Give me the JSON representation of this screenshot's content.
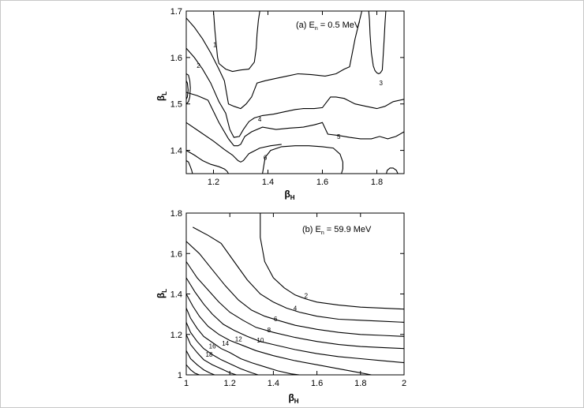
{
  "chart_data": [
    {
      "type": "line",
      "subtype": "contour",
      "panel_label_prefix": "(a) E",
      "panel_label_sub": "n",
      "panel_label_suffix": " = 0.5 MeV",
      "xlabel_main": "β",
      "xlabel_sub": "H",
      "ylabel_main": "β",
      "ylabel_sub": "L",
      "xlim": [
        1.1,
        1.9
      ],
      "ylim": [
        1.35,
        1.7
      ],
      "xticks": [
        1.2,
        1.4,
        1.6,
        1.8
      ],
      "xtick_labels": [
        "1.2",
        "1.4",
        "1.6",
        "1.8"
      ],
      "yticks": [
        1.4,
        1.5,
        1.6,
        1.7
      ],
      "ytick_labels": [
        "1.4",
        "1.5",
        "1.6",
        "1.7"
      ],
      "grid": false,
      "series": [
        {
          "label": "1",
          "x": [
            1.2,
            1.205,
            1.21,
            1.215,
            1.22,
            1.245,
            1.27,
            1.3,
            1.33,
            1.35,
            1.357,
            1.36,
            1.365,
            1.37
          ],
          "y": [
            1.7,
            1.66,
            1.63,
            1.6,
            1.587,
            1.575,
            1.57,
            1.573,
            1.575,
            1.59,
            1.62,
            1.65,
            1.68,
            1.7
          ]
        },
        {
          "label": "2",
          "x": [
            1.1,
            1.13,
            1.16,
            1.19,
            1.22,
            1.24,
            1.255,
            1.275,
            1.3,
            1.32,
            1.34,
            1.36,
            1.39,
            1.43,
            1.47,
            1.51,
            1.56,
            1.61,
            1.65,
            1.68,
            1.7,
            1.72,
            1.745
          ],
          "y": [
            1.685,
            1.665,
            1.64,
            1.61,
            1.575,
            1.55,
            1.5,
            1.495,
            1.49,
            1.5,
            1.515,
            1.545,
            1.55,
            1.555,
            1.56,
            1.565,
            1.563,
            1.56,
            1.565,
            1.575,
            1.58,
            1.64,
            1.7
          ]
        },
        {
          "label": "3",
          "x": [
            1.77,
            1.773,
            1.775,
            1.78,
            1.787,
            1.793,
            1.8,
            1.807,
            1.813,
            1.82,
            1.823,
            1.827,
            1.83,
            1.833
          ],
          "y": [
            1.7,
            1.68,
            1.65,
            1.61,
            1.582,
            1.572,
            1.567,
            1.565,
            1.567,
            1.573,
            1.6,
            1.64,
            1.675,
            1.7
          ]
        },
        {
          "label": "4",
          "x": [
            1.1,
            1.13,
            1.16,
            1.19,
            1.22,
            1.245,
            1.26,
            1.275,
            1.295,
            1.31,
            1.33,
            1.35,
            1.38,
            1.42,
            1.46,
            1.5,
            1.53,
            1.57,
            1.6,
            1.63,
            1.65,
            1.68,
            1.72,
            1.76,
            1.8,
            1.83,
            1.86,
            1.9
          ],
          "y": [
            1.62,
            1.6,
            1.575,
            1.545,
            1.505,
            1.48,
            1.445,
            1.428,
            1.43,
            1.445,
            1.462,
            1.47,
            1.475,
            1.478,
            1.483,
            1.488,
            1.49,
            1.49,
            1.492,
            1.515,
            1.515,
            1.512,
            1.5,
            1.495,
            1.49,
            1.495,
            1.505,
            1.51
          ]
        },
        {
          "label": "5",
          "x": [
            1.1,
            1.14,
            1.18,
            1.22,
            1.255,
            1.275,
            1.29,
            1.3,
            1.315,
            1.34,
            1.38,
            1.43,
            1.48,
            1.53,
            1.57,
            1.6,
            1.62,
            1.66,
            1.7,
            1.74,
            1.78,
            1.81,
            1.84,
            1.87,
            1.9
          ],
          "y": [
            1.525,
            1.518,
            1.508,
            1.46,
            1.425,
            1.41,
            1.41,
            1.413,
            1.43,
            1.44,
            1.45,
            1.445,
            1.448,
            1.45,
            1.455,
            1.46,
            1.435,
            1.432,
            1.428,
            1.425,
            1.425,
            1.43,
            1.425,
            1.43,
            1.44
          ]
        },
        {
          "label": "",
          "x": [
            1.1,
            1.15,
            1.2,
            1.24,
            1.27,
            1.29,
            1.3,
            1.31,
            1.33,
            1.37,
            1.41,
            1.45
          ],
          "y": [
            1.46,
            1.44,
            1.42,
            1.402,
            1.39,
            1.378,
            1.375,
            1.378,
            1.393,
            1.405,
            1.41,
            1.413
          ]
        },
        {
          "label": "6",
          "x": [
            1.38,
            1.39,
            1.41,
            1.45,
            1.5,
            1.55,
            1.6,
            1.64,
            1.665,
            1.675,
            1.675,
            1.67
          ],
          "y": [
            1.35,
            1.385,
            1.4,
            1.408,
            1.41,
            1.41,
            1.408,
            1.405,
            1.392,
            1.375,
            1.36,
            1.35
          ]
        },
        {
          "label": "",
          "x": [
            1.1,
            1.13,
            1.16,
            1.19,
            1.22,
            1.24,
            1.25,
            1.255
          ],
          "y": [
            1.4,
            1.39,
            1.378,
            1.37,
            1.365,
            1.36,
            1.355,
            1.35
          ]
        },
        {
          "label": "",
          "x": [
            1.1,
            1.108,
            1.113,
            1.115,
            1.113,
            1.108,
            1.1
          ],
          "y": [
            1.565,
            1.562,
            1.55,
            1.535,
            1.515,
            1.505,
            1.5
          ]
        },
        {
          "label": "",
          "x": [
            1.1,
            1.104,
            1.107,
            1.104,
            1.1
          ],
          "y": [
            1.55,
            1.545,
            1.53,
            1.515,
            1.51
          ]
        },
        {
          "label": "",
          "x": [
            1.1,
            1.108,
            1.115,
            1.12,
            1.123
          ],
          "y": [
            1.378,
            1.375,
            1.365,
            1.357,
            1.35
          ]
        },
        {
          "label": "",
          "x": [
            1.835,
            1.838,
            1.848,
            1.86,
            1.872,
            1.877
          ],
          "y": [
            1.35,
            1.357,
            1.362,
            1.362,
            1.357,
            1.35
          ]
        }
      ],
      "contour_labels": [
        {
          "text": "1",
          "x": 1.205,
          "y": 1.623
        },
        {
          "text": "2",
          "x": 1.145,
          "y": 1.578
        },
        {
          "text": "3",
          "x": 1.815,
          "y": 1.54
        },
        {
          "text": "4",
          "x": 1.37,
          "y": 1.462
        },
        {
          "text": "5",
          "x": 1.66,
          "y": 1.425
        },
        {
          "text": "6",
          "x": 1.39,
          "y": 1.38
        }
      ]
    },
    {
      "type": "line",
      "subtype": "contour",
      "panel_label_prefix": "(b) E",
      "panel_label_sub": "n",
      "panel_label_suffix": " = 59.9 MeV",
      "xlabel_main": "β",
      "xlabel_sub": "H",
      "ylabel_main": "β",
      "ylabel_sub": "L",
      "xlim": [
        1.0,
        2.0
      ],
      "ylim": [
        1.0,
        1.8
      ],
      "xticks": [
        1.0,
        1.2,
        1.4,
        1.6,
        1.8,
        2.0
      ],
      "xtick_labels": [
        "1",
        "1.2",
        "1.4",
        "1.6",
        "1.8",
        "2"
      ],
      "yticks": [
        1.0,
        1.2,
        1.4,
        1.6,
        1.8
      ],
      "ytick_labels": [
        "1",
        "1.2",
        "1.4",
        "1.6",
        "1.8"
      ],
      "grid": false,
      "series": [
        {
          "label": "2",
          "x": [
            1.34,
            1.34,
            1.36,
            1.4,
            1.45,
            1.5,
            1.55,
            1.6,
            1.7,
            1.8,
            1.9,
            2.0
          ],
          "y": [
            1.8,
            1.68,
            1.56,
            1.48,
            1.43,
            1.395,
            1.375,
            1.36,
            1.345,
            1.335,
            1.33,
            1.325
          ]
        },
        {
          "label": "4",
          "x": [
            1.03,
            1.1,
            1.16,
            1.22,
            1.28,
            1.34,
            1.4,
            1.46,
            1.52,
            1.6,
            1.7,
            1.8,
            1.9,
            2.0
          ],
          "y": [
            1.73,
            1.69,
            1.65,
            1.56,
            1.47,
            1.4,
            1.36,
            1.33,
            1.31,
            1.29,
            1.275,
            1.27,
            1.265,
            1.26
          ]
        },
        {
          "label": "6",
          "x": [
            1.0,
            1.06,
            1.12,
            1.18,
            1.24,
            1.3,
            1.36,
            1.42,
            1.5,
            1.6,
            1.7,
            1.8,
            1.9,
            2.0
          ],
          "y": [
            1.66,
            1.6,
            1.52,
            1.44,
            1.37,
            1.32,
            1.29,
            1.27,
            1.245,
            1.225,
            1.21,
            1.2,
            1.195,
            1.19
          ]
        },
        {
          "label": "8",
          "x": [
            1.0,
            1.05,
            1.1,
            1.15,
            1.2,
            1.26,
            1.32,
            1.4,
            1.5,
            1.6,
            1.7,
            1.8,
            1.9,
            2.0
          ],
          "y": [
            1.56,
            1.48,
            1.42,
            1.36,
            1.31,
            1.27,
            1.235,
            1.21,
            1.185,
            1.165,
            1.15,
            1.14,
            1.135,
            1.13
          ]
        },
        {
          "label": "10",
          "x": [
            1.0,
            1.04,
            1.08,
            1.12,
            1.17,
            1.22,
            1.28,
            1.34,
            1.4,
            1.5,
            1.6,
            1.7,
            1.8,
            1.9,
            2.0
          ],
          "y": [
            1.48,
            1.41,
            1.35,
            1.3,
            1.25,
            1.22,
            1.19,
            1.165,
            1.15,
            1.125,
            1.105,
            1.09,
            1.08,
            1.07,
            1.06
          ]
        },
        {
          "label": "12",
          "x": [
            1.0,
            1.03,
            1.06,
            1.1,
            1.15,
            1.2,
            1.26,
            1.32,
            1.4,
            1.5,
            1.6,
            1.7,
            1.8,
            1.85
          ],
          "y": [
            1.4,
            1.34,
            1.29,
            1.24,
            1.2,
            1.17,
            1.145,
            1.12,
            1.095,
            1.07,
            1.05,
            1.03,
            1.01,
            1.0
          ]
        },
        {
          "label": "14",
          "x": [
            1.0,
            1.02,
            1.05,
            1.08,
            1.12,
            1.16,
            1.2,
            1.25,
            1.3,
            1.36,
            1.42,
            1.48,
            1.52
          ],
          "y": [
            1.33,
            1.28,
            1.23,
            1.19,
            1.16,
            1.13,
            1.11,
            1.08,
            1.06,
            1.04,
            1.02,
            1.005,
            1.0
          ]
        },
        {
          "label": "16",
          "x": [
            1.0,
            1.02,
            1.05,
            1.08,
            1.12,
            1.16,
            1.2,
            1.25,
            1.3,
            1.33
          ],
          "y": [
            1.26,
            1.21,
            1.165,
            1.13,
            1.1,
            1.075,
            1.055,
            1.03,
            1.01,
            1.0
          ]
        },
        {
          "label": "18",
          "x": [
            1.0,
            1.02,
            1.05,
            1.08,
            1.12,
            1.16,
            1.2,
            1.23
          ],
          "y": [
            1.2,
            1.15,
            1.11,
            1.075,
            1.05,
            1.03,
            1.01,
            1.0
          ]
        },
        {
          "label": "",
          "x": [
            1.0,
            1.02,
            1.05,
            1.08,
            1.11,
            1.13
          ],
          "y": [
            1.12,
            1.08,
            1.05,
            1.025,
            1.008,
            1.0
          ]
        },
        {
          "label": "",
          "x": [
            1.0,
            1.02,
            1.04,
            1.06
          ],
          "y": [
            1.05,
            1.025,
            1.008,
            1.0
          ]
        }
      ],
      "contour_labels": [
        {
          "text": "2",
          "x": 1.55,
          "y": 1.38
        },
        {
          "text": "4",
          "x": 1.5,
          "y": 1.318
        },
        {
          "text": "6",
          "x": 1.41,
          "y": 1.266
        },
        {
          "text": "8",
          "x": 1.38,
          "y": 1.21
        },
        {
          "text": "10",
          "x": 1.34,
          "y": 1.16
        },
        {
          "text": "12",
          "x": 1.24,
          "y": 1.165
        },
        {
          "text": "14",
          "x": 1.18,
          "y": 1.145
        },
        {
          "text": "16",
          "x": 1.12,
          "y": 1.13
        },
        {
          "text": "18",
          "x": 1.105,
          "y": 1.09
        }
      ]
    }
  ]
}
